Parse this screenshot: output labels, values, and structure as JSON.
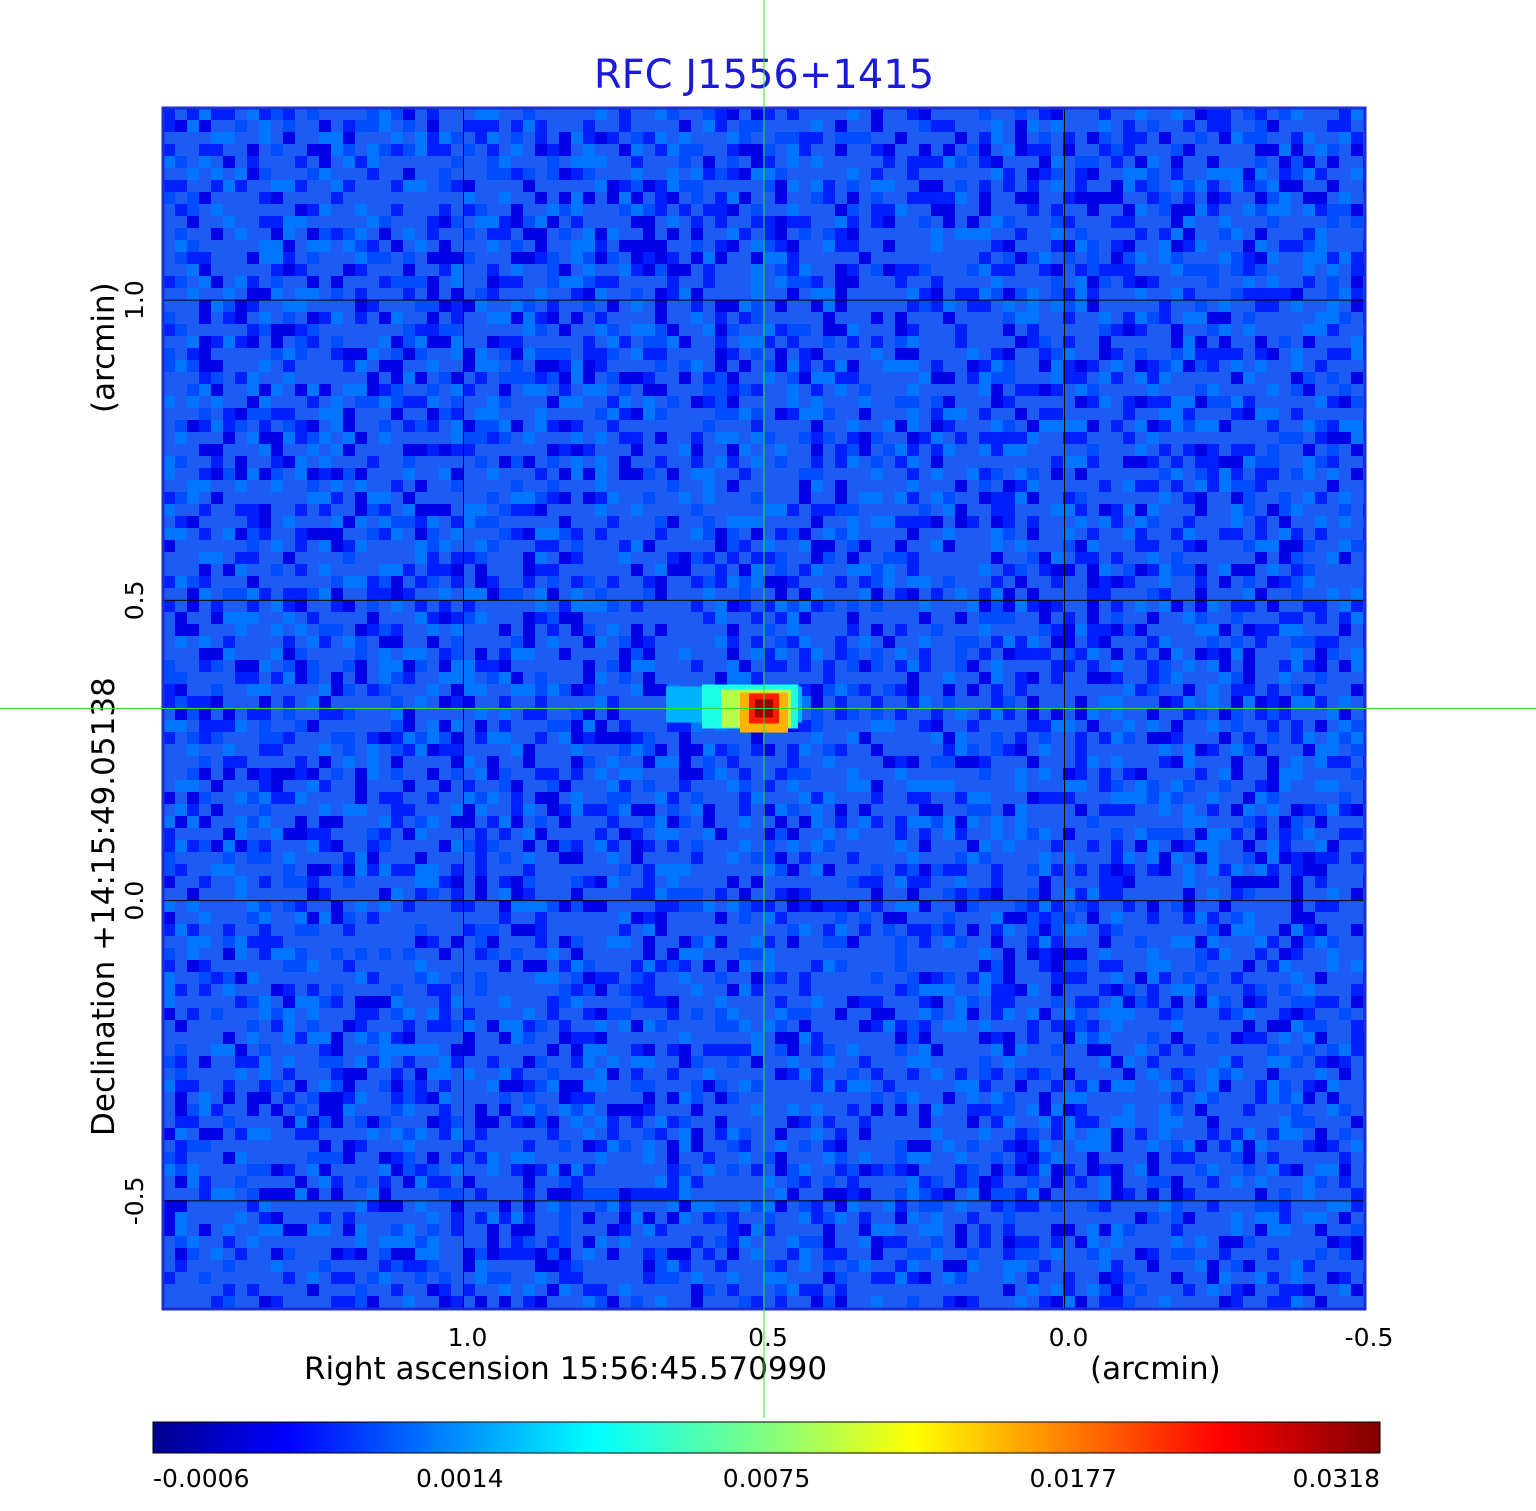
{
  "chart_data": {
    "type": "heatmap",
    "title": "RFC J1556+1415",
    "xlabel": "Right ascension  15:56:45.570990",
    "xlabel_unit": "(arcmin)",
    "ylabel": "Declination  +14:15:49.05138",
    "ylabel_unit": "(arcmin)",
    "x_ticks": [
      "1.0",
      "0.5",
      "0.0",
      "-0.5"
    ],
    "x_tick_values": [
      1.0,
      0.5,
      0.0,
      -0.5
    ],
    "y_ticks": [
      "1.0",
      "0.5",
      "0.0",
      "-0.5"
    ],
    "y_tick_values": [
      1.0,
      0.5,
      0.0,
      -0.5
    ],
    "xlim": [
      1.5,
      -0.5
    ],
    "ylim": [
      -0.68,
      1.32
    ],
    "grid": true,
    "colormap": "jet",
    "colorbar": {
      "placement": "bottom",
      "tick_labels": [
        "-0.0006",
        "0.0014",
        "0.0075",
        "0.0177",
        "0.0318"
      ],
      "tick_values": [
        -0.0006,
        0.0014,
        0.0075,
        0.0177,
        0.0318
      ],
      "range": [
        -0.0006,
        0.0318
      ]
    },
    "source": {
      "x": 0.5,
      "y": 0.32,
      "peak": 0.0318
    },
    "crosshair": {
      "x": 0.5,
      "y": 0.32,
      "color": "#33dd33"
    },
    "colors": {
      "title": "#1a1adb",
      "frame": "#1a2fd6",
      "grid": "#000000"
    }
  }
}
